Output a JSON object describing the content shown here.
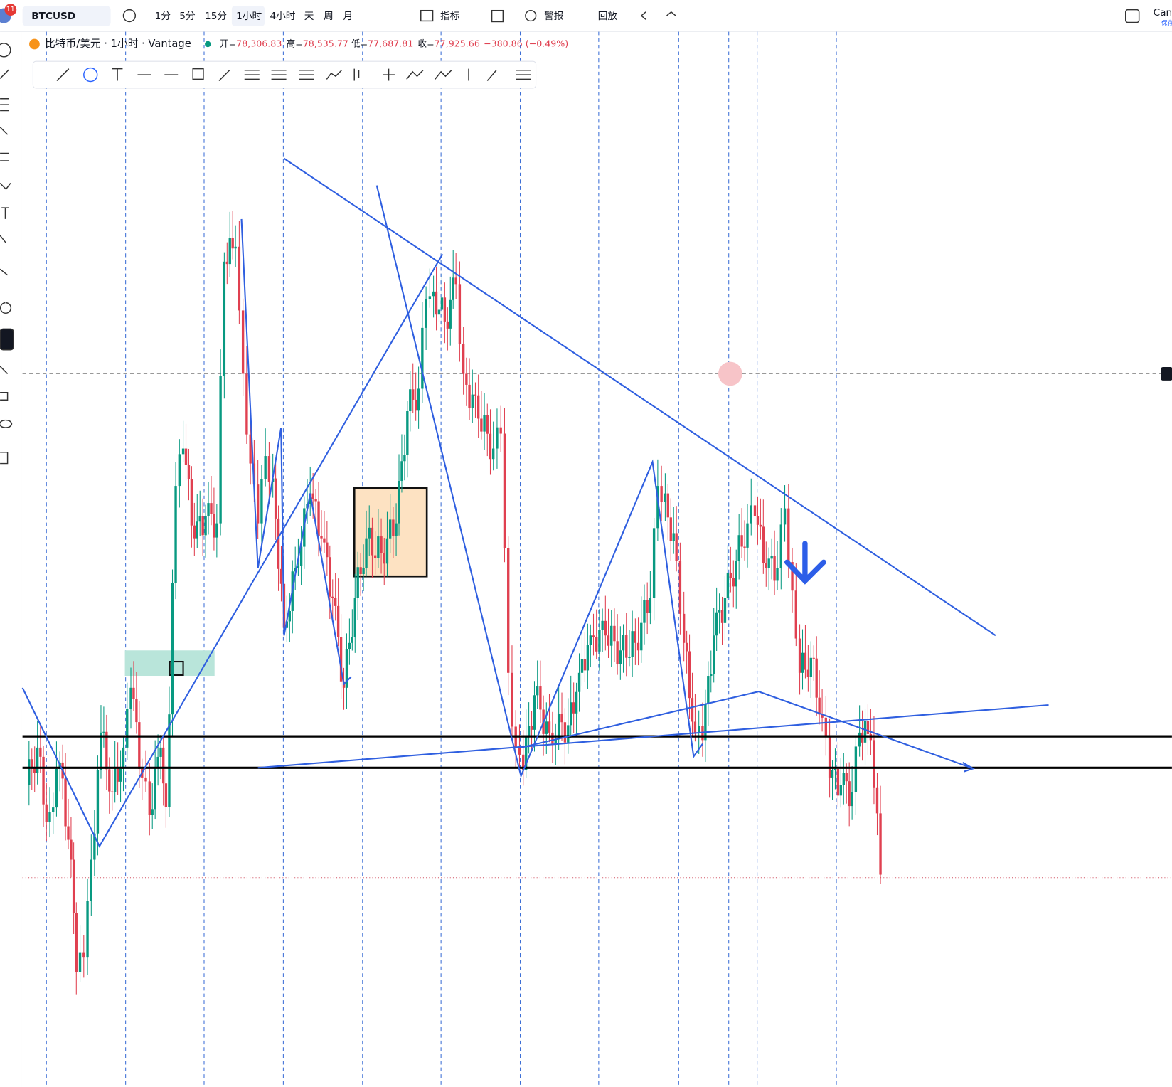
{
  "toolbar": {
    "symbol": "BTCUSD",
    "badge": "11",
    "intervals": [
      "1分",
      "5分",
      "15分",
      "1小时",
      "4小时",
      "天",
      "周",
      "月"
    ],
    "indicators": "指标",
    "alerts": "警报",
    "replay": "回放",
    "right_label": "Can",
    "right_sublabel": "保存"
  },
  "legend": {
    "title": "比特币/美元 · 1小时 · Vantage",
    "items": [
      {
        "label": "开=",
        "value": "78,306.83"
      },
      {
        "label": "高=",
        "value": "78,535.77"
      },
      {
        "label": "低=",
        "value": "77,687.81"
      },
      {
        "label": "收=",
        "value": "77,925.66"
      }
    ],
    "change": "−380.86 (−0.49%)"
  }
}
